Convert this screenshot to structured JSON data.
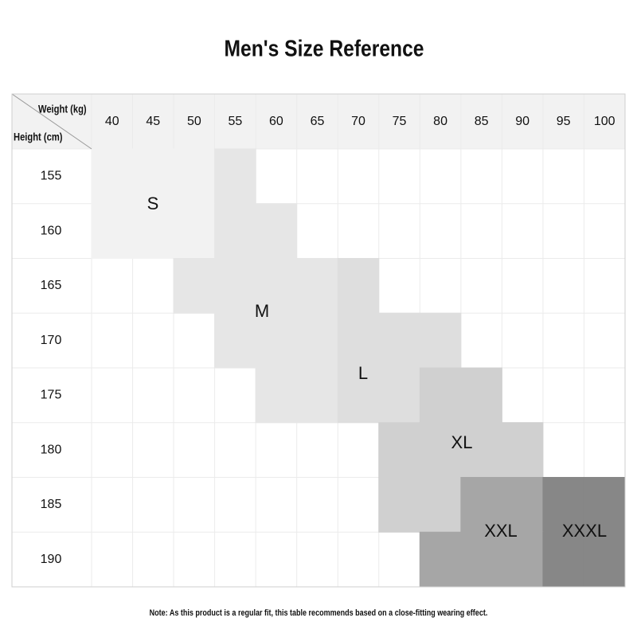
{
  "header": {
    "title": "Men's Size Reference"
  },
  "table": {
    "corner": {
      "weight_label": "Weight (kg)",
      "height_label": "Height (cm)"
    },
    "weights": [
      "40",
      "45",
      "50",
      "55",
      "60",
      "65",
      "70",
      "75",
      "80",
      "85",
      "90",
      "95",
      "100"
    ],
    "heights": [
      "155",
      "160",
      "165",
      "170",
      "175",
      "180",
      "185",
      "190"
    ],
    "sizes": [
      {
        "label": "S",
        "color": "#f2f2f2"
      },
      {
        "label": "M",
        "color": "#e6e6e6"
      },
      {
        "label": "L",
        "color": "#dedede"
      },
      {
        "label": "XL",
        "color": "#d0d0d0"
      },
      {
        "label": "XXL",
        "color": "#a6a6a6"
      },
      {
        "label": "XXXL",
        "color": "#878787"
      }
    ],
    "cells": [
      [
        "S",
        "S",
        "S",
        "M",
        null,
        null,
        null,
        null,
        null,
        null,
        null,
        null,
        null
      ],
      [
        "S",
        "S",
        "S",
        "M",
        "M",
        null,
        null,
        null,
        null,
        null,
        null,
        null,
        null
      ],
      [
        null,
        null,
        "M",
        "M",
        "M",
        "M",
        "L",
        null,
        null,
        null,
        null,
        null,
        null
      ],
      [
        null,
        null,
        null,
        "M",
        "M",
        "M",
        "L",
        "L",
        "L",
        null,
        null,
        null,
        null
      ],
      [
        null,
        null,
        null,
        null,
        "M",
        "M",
        "L",
        "L",
        "XL",
        "XL",
        null,
        null,
        null
      ],
      [
        null,
        null,
        null,
        null,
        null,
        null,
        null,
        "XL",
        "XL",
        "XL",
        "XL",
        null,
        null
      ],
      [
        null,
        null,
        null,
        null,
        null,
        null,
        null,
        "XL",
        "XL",
        "XXL",
        "XXL",
        "XXXL",
        "XXXL"
      ],
      [
        null,
        null,
        null,
        null,
        null,
        null,
        null,
        null,
        "XXL",
        "XXL",
        "XXL",
        "XXXL",
        "XXXL"
      ]
    ]
  },
  "footer": {
    "note": "Note: As this product is a regular fit, this table recommends based on a close-fitting wearing effect."
  }
}
